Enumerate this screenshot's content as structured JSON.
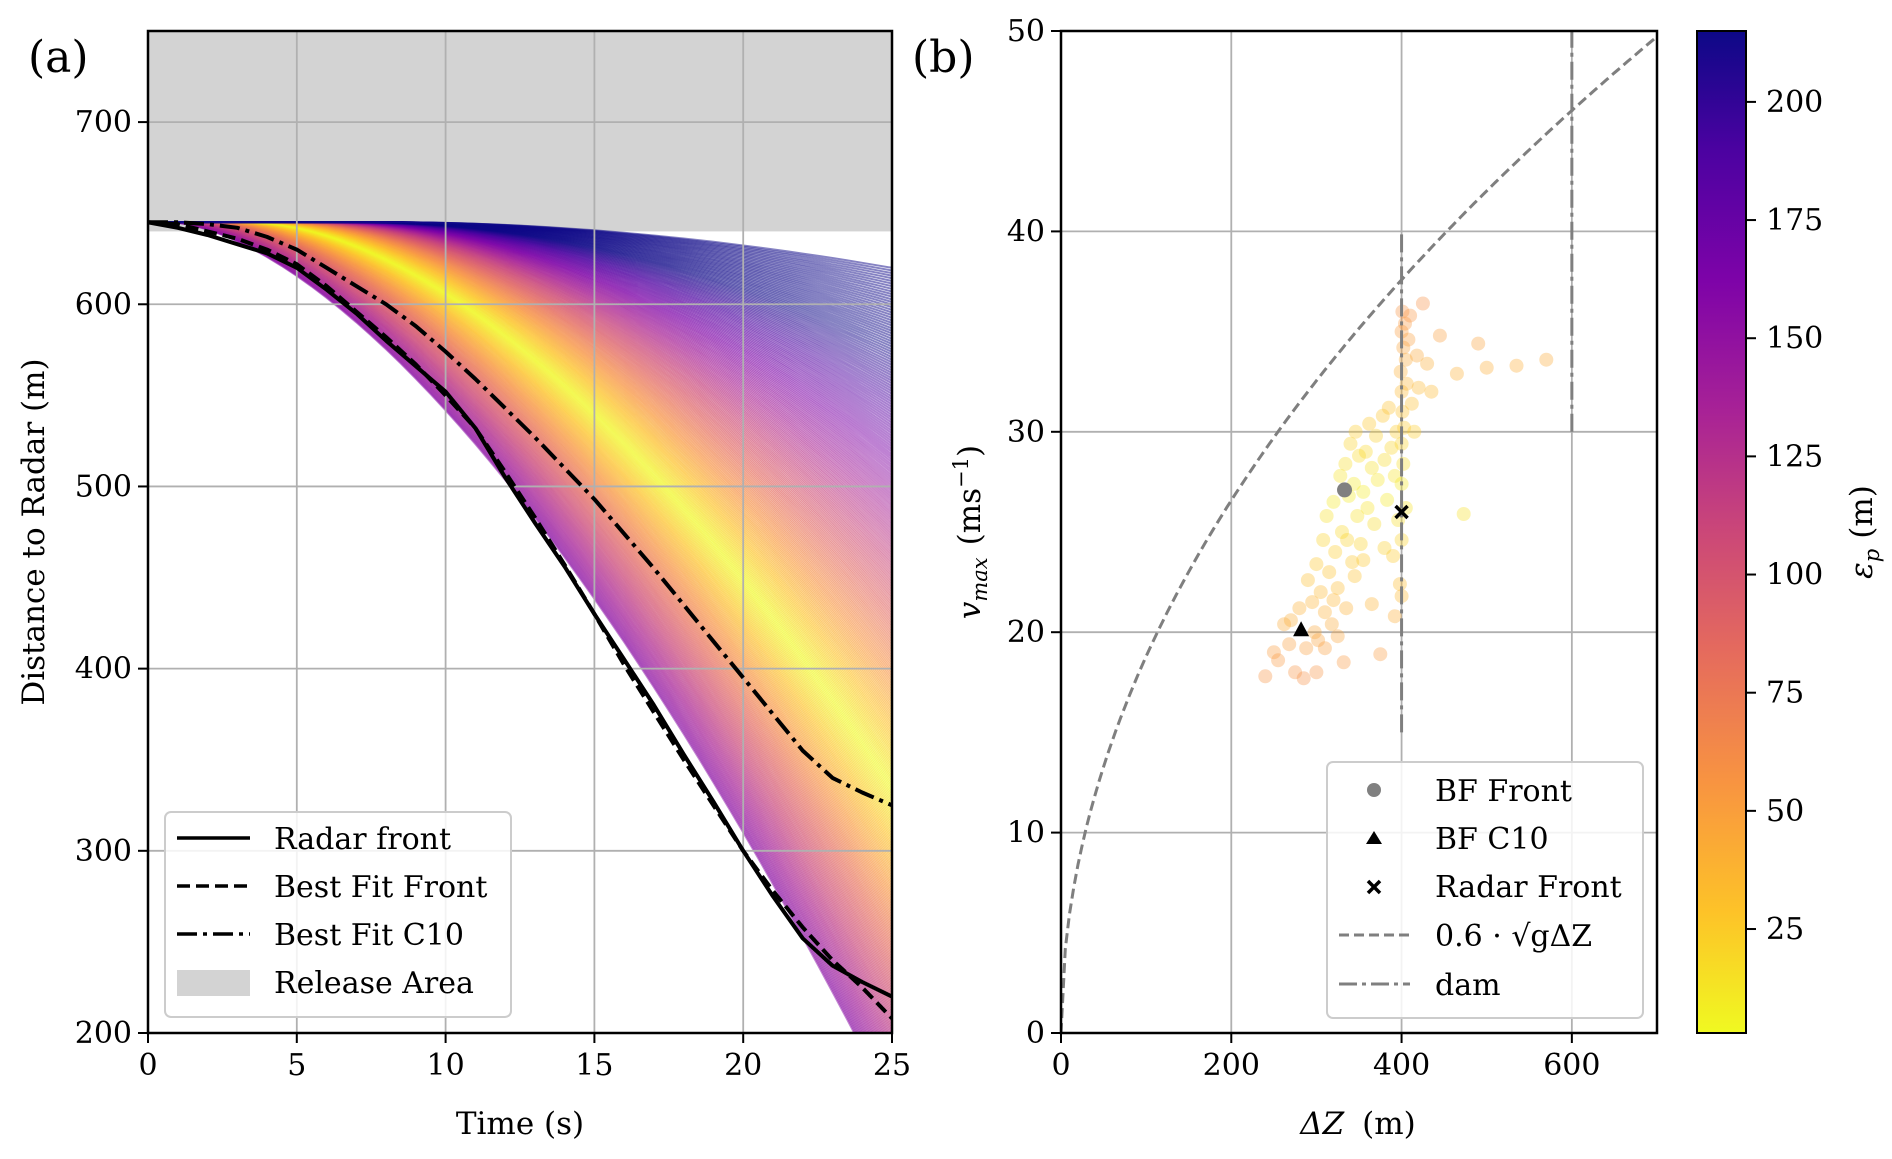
{
  "panel_a": {
    "label": "(a)",
    "xlabel": "Time (s)",
    "ylabel": "Distance to Radar (m)",
    "xticks": [
      "0",
      "5",
      "10",
      "15",
      "20",
      "25"
    ],
    "yticks": [
      "200",
      "300",
      "400",
      "500",
      "600",
      "700"
    ],
    "legend": [
      "Radar front",
      "Best Fit Front",
      "Best Fit C10",
      "Release Area"
    ]
  },
  "panel_b": {
    "label": "(b)",
    "xlabel_main": "ΔZ",
    "xlabel_unit": "(m)",
    "ylabel_var": "v",
    "ylabel_sub": "max",
    "ylabel_unit": "(ms",
    "ylabel_exp": "−1",
    "ylabel_close": ")",
    "xticks": [
      "0",
      "200",
      "400",
      "600"
    ],
    "yticks": [
      "0",
      "10",
      "20",
      "30",
      "40",
      "50"
    ],
    "legend": [
      "BF Front",
      "BF C10",
      "Radar Front",
      "0.6 · √gΔZ",
      "dam"
    ]
  },
  "colorbar": {
    "label_var": "ε",
    "label_sub": "p",
    "label_unit": "(m)",
    "ticks": [
      "25",
      "50",
      "75",
      "100",
      "125",
      "150",
      "175",
      "200"
    ],
    "range": [
      3,
      215
    ]
  },
  "chart_data": [
    {
      "type": "line",
      "xlabel": "Time (s)",
      "ylabel": "Distance to Radar (m)",
      "xlim": [
        0,
        25
      ],
      "ylim": [
        200,
        750
      ],
      "grid": true,
      "legend_position": "bottom-left",
      "release_area": {
        "y_from": 640,
        "y_to": 750,
        "color": "#d3d3d3"
      },
      "series": [
        {
          "name": "Radar front",
          "style": "solid",
          "x": [
            0,
            1,
            2,
            3,
            4,
            5,
            6,
            7,
            8,
            9,
            10,
            11,
            12,
            13,
            14,
            15,
            16,
            17,
            18,
            19,
            20,
            21,
            22,
            23,
            24,
            25
          ],
          "y": [
            645,
            642,
            638,
            633,
            628,
            620,
            608,
            595,
            580,
            566,
            552,
            532,
            505,
            480,
            456,
            430,
            405,
            380,
            353,
            327,
            300,
            275,
            252,
            237,
            228,
            220
          ]
        },
        {
          "name": "Best Fit Front",
          "style": "dashed",
          "x": [
            0,
            1,
            2,
            3,
            4,
            5,
            6,
            7,
            8,
            9,
            10,
            11,
            12,
            13,
            14,
            15,
            16,
            17,
            18,
            19,
            20,
            21,
            22,
            23,
            24,
            25
          ],
          "y": [
            645,
            644,
            640,
            636,
            630,
            622,
            610,
            596,
            582,
            567,
            550,
            532,
            508,
            483,
            457,
            430,
            402,
            376,
            350,
            325,
            300,
            278,
            258,
            240,
            225,
            208
          ]
        },
        {
          "name": "Best Fit C10",
          "style": "dashdot",
          "x": [
            0,
            1,
            2,
            3,
            4,
            5,
            6,
            7,
            8,
            9,
            10,
            11,
            12,
            13,
            14,
            15,
            16,
            17,
            18,
            19,
            20,
            21,
            22,
            23,
            24,
            25
          ],
          "y": [
            645,
            645,
            644,
            642,
            637,
            630,
            620,
            610,
            600,
            588,
            574,
            559,
            543,
            527,
            510,
            493,
            474,
            455,
            435,
            415,
            395,
            375,
            355,
            340,
            332,
            325
          ]
        }
      ]
    },
    {
      "type": "scatter",
      "xlabel": "ΔZ (m)",
      "ylabel": "v_max (ms^-1)",
      "xlim": [
        0,
        700
      ],
      "ylim": [
        0,
        50
      ],
      "grid": true,
      "legend_position": "bottom-right",
      "markers": [
        {
          "name": "BF Front",
          "marker": "circle",
          "x": 333,
          "y": 27.1
        },
        {
          "name": "BF C10",
          "marker": "triangle",
          "x": 282,
          "y": 20.1
        },
        {
          "name": "Radar Front",
          "marker": "x",
          "x": 400,
          "y": 26.0
        }
      ],
      "reference_curve": {
        "name": "0.6 · √gΔZ",
        "coefficient": 0.6,
        "g": 9.81
      },
      "dam_lines": [
        {
          "x": 400,
          "y_from": 15,
          "y_to": 40
        },
        {
          "x": 600,
          "y_from": 30,
          "y_to": 50
        }
      ],
      "scatter_points": [
        [
          240,
          17.8
        ],
        [
          250,
          19.0
        ],
        [
          255,
          18.6
        ],
        [
          262,
          20.4
        ],
        [
          268,
          19.4
        ],
        [
          270,
          20.6
        ],
        [
          275,
          18.0
        ],
        [
          280,
          21.2
        ],
        [
          285,
          17.7
        ],
        [
          288,
          19.2
        ],
        [
          290,
          22.6
        ],
        [
          295,
          21.5
        ],
        [
          298,
          20.0
        ],
        [
          300,
          23.4
        ],
        [
          302,
          19.6
        ],
        [
          305,
          22.0
        ],
        [
          308,
          24.6
        ],
        [
          310,
          21.0
        ],
        [
          312,
          25.8
        ],
        [
          315,
          23.0
        ],
        [
          318,
          20.4
        ],
        [
          320,
          26.5
        ],
        [
          322,
          24.0
        ],
        [
          325,
          22.2
        ],
        [
          328,
          27.8
        ],
        [
          330,
          25.0
        ],
        [
          332,
          18.5
        ],
        [
          334,
          28.4
        ],
        [
          336,
          24.6
        ],
        [
          338,
          26.8
        ],
        [
          340,
          29.4
        ],
        [
          342,
          23.5
        ],
        [
          344,
          27.4
        ],
        [
          346,
          30.0
        ],
        [
          348,
          25.8
        ],
        [
          350,
          28.8
        ],
        [
          352,
          24.4
        ],
        [
          355,
          27.0
        ],
        [
          358,
          29.0
        ],
        [
          360,
          26.2
        ],
        [
          362,
          30.4
        ],
        [
          365,
          28.2
        ],
        [
          368,
          25.4
        ],
        [
          370,
          29.8
        ],
        [
          372,
          27.6
        ],
        [
          375,
          18.9
        ],
        [
          378,
          30.8
        ],
        [
          380,
          28.6
        ],
        [
          383,
          26.6
        ],
        [
          385,
          31.2
        ],
        [
          388,
          29.2
        ],
        [
          390,
          23.8
        ],
        [
          392,
          27.8
        ],
        [
          394,
          30.0
        ],
        [
          396,
          25.6
        ],
        [
          398,
          22.4
        ],
        [
          399,
          33.0
        ],
        [
          400,
          35.0
        ],
        [
          400,
          32.0
        ],
        [
          400,
          29.4
        ],
        [
          400,
          27.4
        ],
        [
          400,
          24.6
        ],
        [
          400,
          21.8
        ],
        [
          401,
          36.0
        ],
        [
          401,
          31.0
        ],
        [
          402,
          34.2
        ],
        [
          402,
          28.4
        ],
        [
          403,
          30.2
        ],
        [
          404,
          35.4
        ],
        [
          405,
          33.6
        ],
        [
          405,
          26.2
        ],
        [
          406,
          32.4
        ],
        [
          408,
          34.6
        ],
        [
          410,
          35.8
        ],
        [
          412,
          31.4
        ],
        [
          415,
          30.0
        ],
        [
          418,
          33.8
        ],
        [
          420,
          32.2
        ],
        [
          425,
          36.4
        ],
        [
          430,
          33.4
        ],
        [
          435,
          32.0
        ],
        [
          445,
          34.8
        ],
        [
          465,
          32.9
        ],
        [
          473,
          25.9
        ],
        [
          490,
          34.4
        ],
        [
          500,
          33.2
        ],
        [
          535,
          33.3
        ],
        [
          570,
          33.6
        ],
        [
          300,
          18.0
        ],
        [
          310,
          19.2
        ],
        [
          320,
          21.6
        ],
        [
          325,
          19.8
        ],
        [
          335,
          21.2
        ],
        [
          345,
          22.8
        ],
        [
          355,
          23.6
        ],
        [
          365,
          21.4
        ],
        [
          380,
          24.2
        ],
        [
          392,
          20.8
        ]
      ]
    }
  ]
}
